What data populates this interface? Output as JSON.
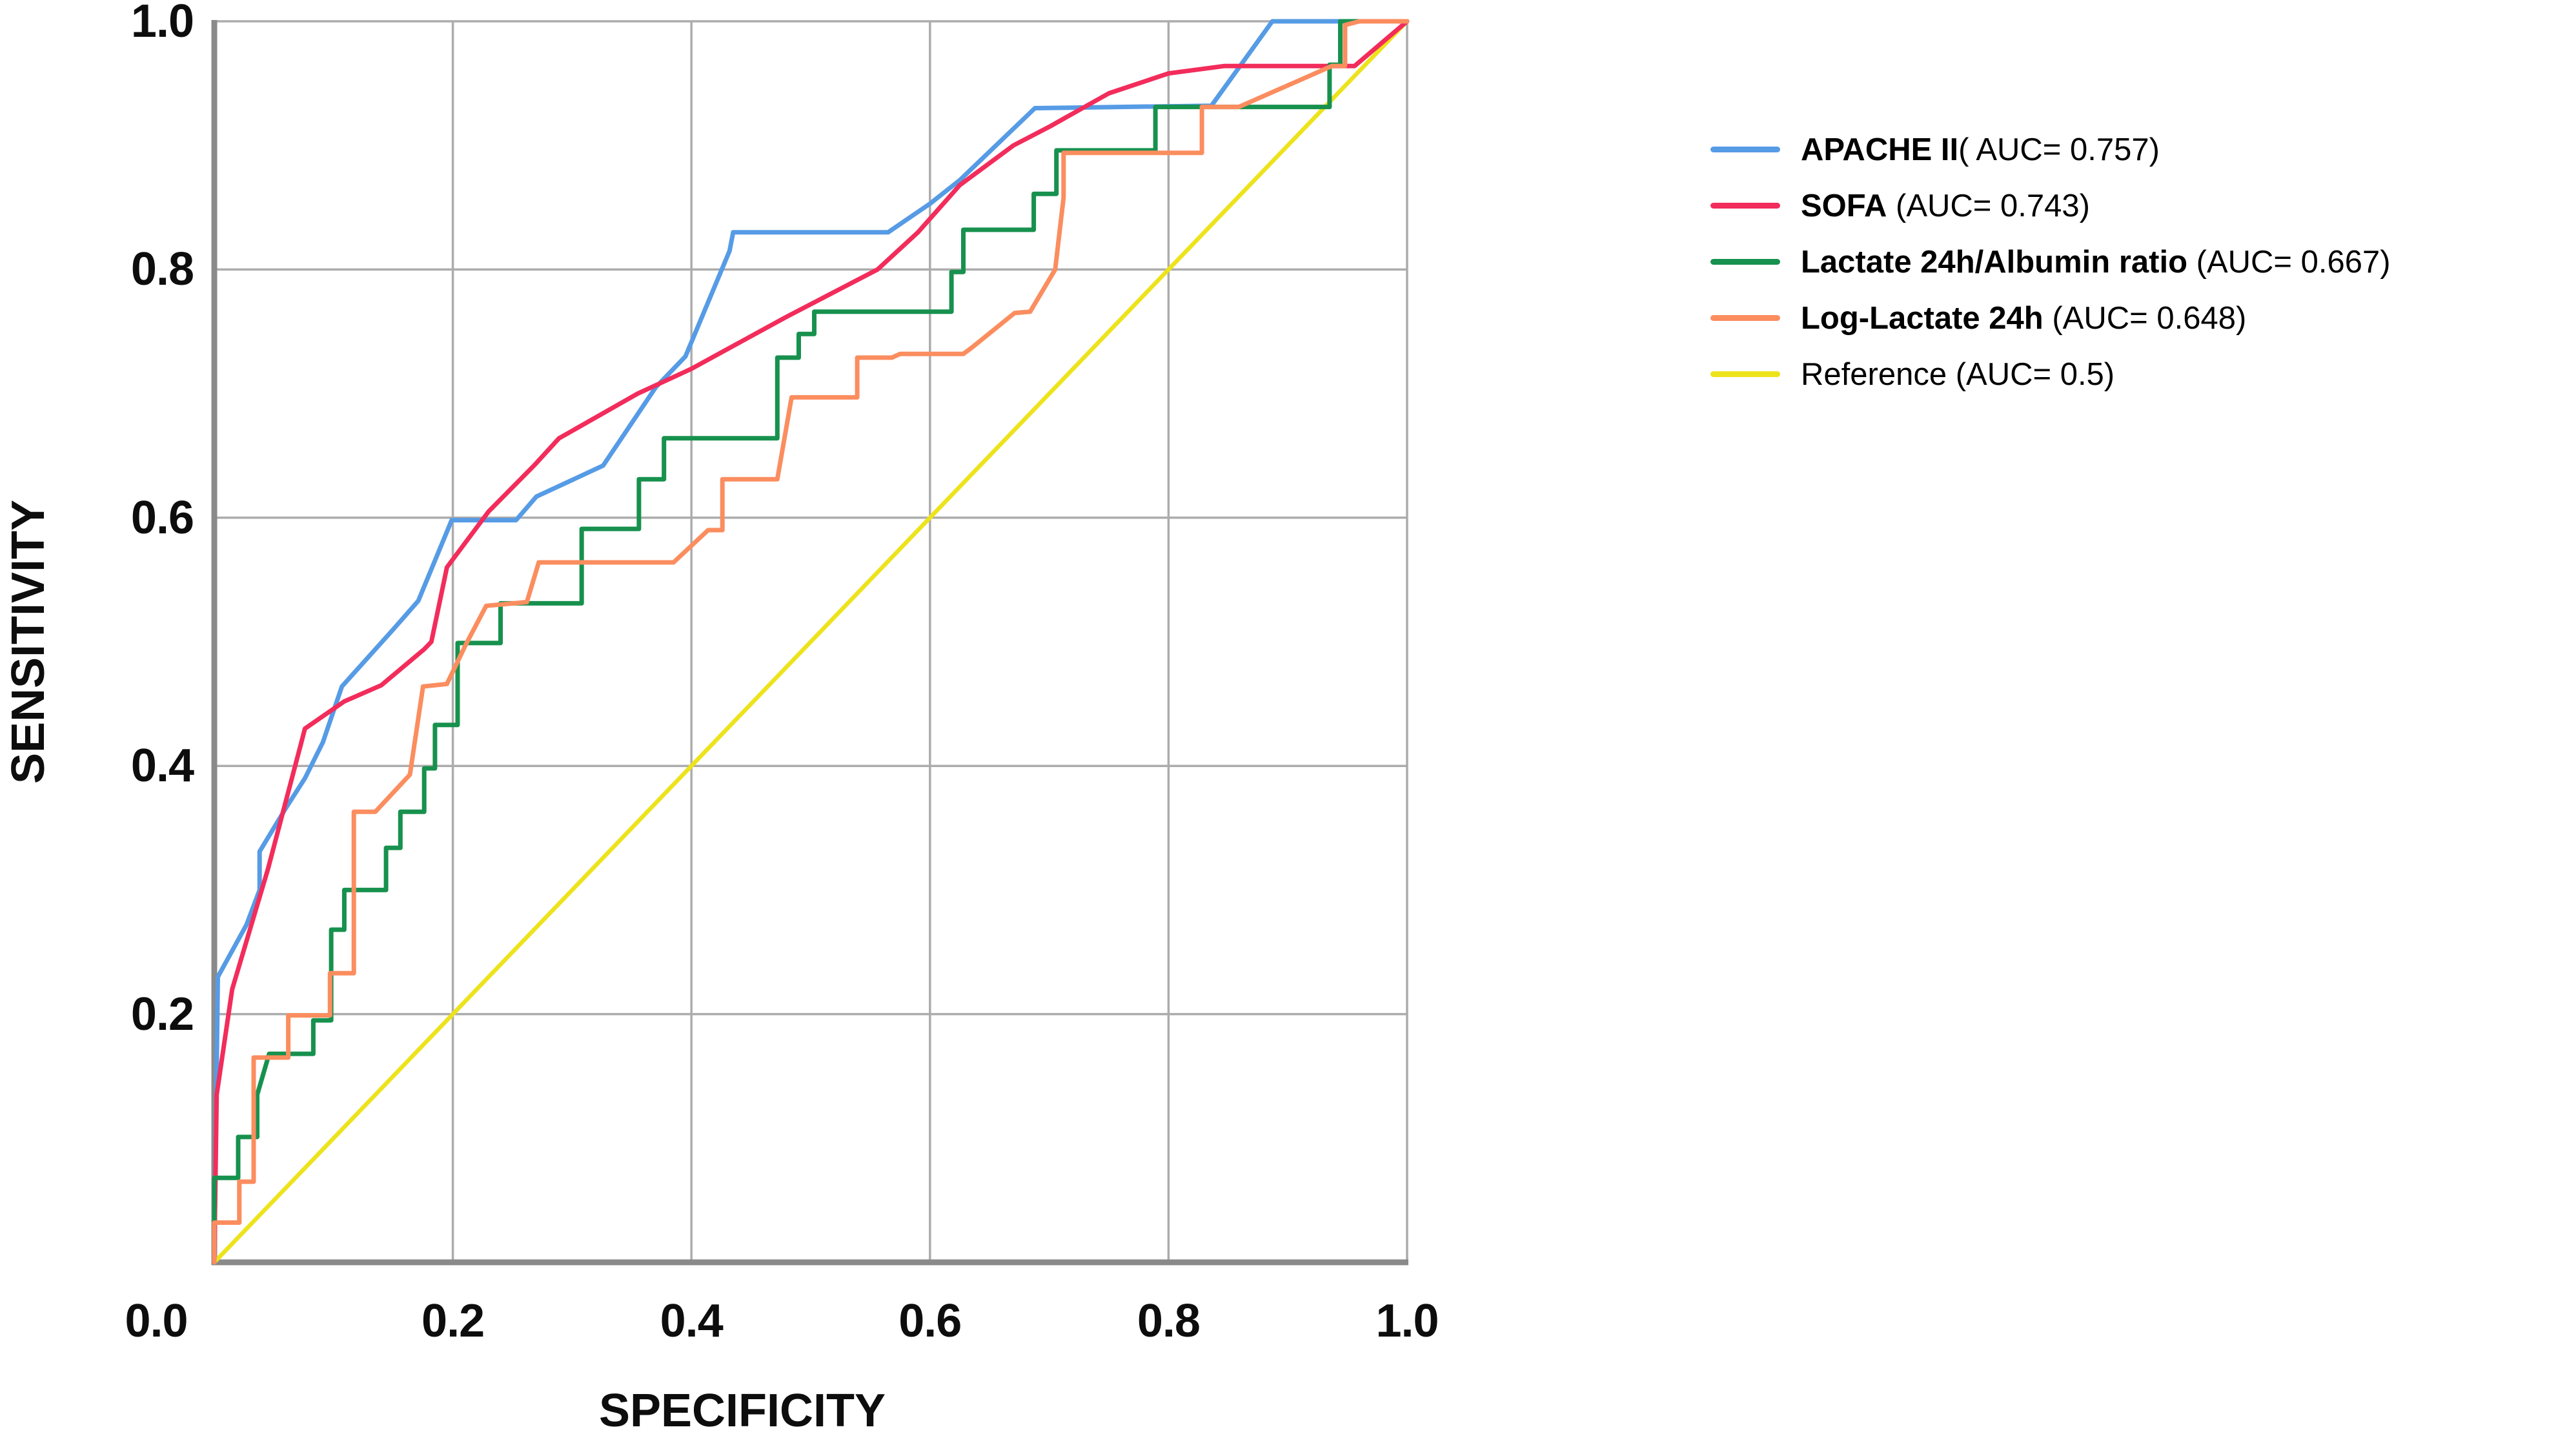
{
  "chart_data": {
    "type": "line",
    "subtype": "roc-curves",
    "title": "",
    "xlabel": "SPECIFICITY",
    "ylabel": "SENSITIVITY",
    "xlim": [
      0,
      1
    ],
    "ylim": [
      0,
      1
    ],
    "grid": true,
    "legend_position": "right-outside",
    "corner_tick": "0.0",
    "x_ticks": {
      "labels": [
        "0.2",
        "0.4",
        "0.6",
        "0.8",
        "1.0"
      ],
      "values": [
        0.2,
        0.4,
        0.6,
        0.8,
        1.0
      ]
    },
    "y_ticks": {
      "labels": [
        "1.0",
        "0.8",
        "0.6",
        "0.4",
        "0.2"
      ],
      "values": [
        1.0,
        0.8,
        0.6,
        0.4,
        0.2
      ]
    },
    "series": [
      {
        "name": "APACHE II",
        "auc": "0.757",
        "legend_bold": "APACHE II",
        "legend_rest": "( AUC= 0.757)",
        "color": "#569BE5",
        "points": [
          [
            0,
            0
          ],
          [
            0.003,
            0.23
          ],
          [
            0.027,
            0.272
          ],
          [
            0.038,
            0.3
          ],
          [
            0.038,
            0.331
          ],
          [
            0.06,
            0.366
          ],
          [
            0.076,
            0.39
          ],
          [
            0.091,
            0.419
          ],
          [
            0.107,
            0.464
          ],
          [
            0.15,
            0.51
          ],
          [
            0.171,
            0.533
          ],
          [
            0.199,
            0.598
          ],
          [
            0.253,
            0.598
          ],
          [
            0.27,
            0.617
          ],
          [
            0.326,
            0.642
          ],
          [
            0.37,
            0.705
          ],
          [
            0.395,
            0.73
          ],
          [
            0.432,
            0.815
          ],
          [
            0.435,
            0.83
          ],
          [
            0.565,
            0.83
          ],
          [
            0.6,
            0.853
          ],
          [
            0.625,
            0.872
          ],
          [
            0.688,
            0.93
          ],
          [
            0.836,
            0.932
          ],
          [
            0.887,
            1.0
          ],
          [
            1,
            1
          ]
        ]
      },
      {
        "name": "SOFA",
        "auc": "0.743",
        "legend_bold": "SOFA",
        "legend_rest": " (AUC= 0.743)",
        "color": "#F22C5B",
        "points": [
          [
            0,
            0
          ],
          [
            0.002,
            0.135
          ],
          [
            0.015,
            0.22
          ],
          [
            0.045,
            0.317
          ],
          [
            0.073,
            0.419
          ],
          [
            0.076,
            0.43
          ],
          [
            0.109,
            0.452
          ],
          [
            0.14,
            0.465
          ],
          [
            0.176,
            0.494
          ],
          [
            0.182,
            0.5
          ],
          [
            0.195,
            0.56
          ],
          [
            0.23,
            0.605
          ],
          [
            0.268,
            0.642
          ],
          [
            0.289,
            0.664
          ],
          [
            0.355,
            0.7
          ],
          [
            0.4,
            0.72
          ],
          [
            0.48,
            0.762
          ],
          [
            0.556,
            0.8
          ],
          [
            0.59,
            0.83
          ],
          [
            0.625,
            0.868
          ],
          [
            0.67,
            0.9
          ],
          [
            0.7,
            0.915
          ],
          [
            0.75,
            0.942
          ],
          [
            0.8,
            0.958
          ],
          [
            0.847,
            0.964
          ],
          [
            0.956,
            0.964
          ],
          [
            1,
            1
          ]
        ]
      },
      {
        "name": "Lactate 24h/Albumin ratio",
        "auc": "0.667",
        "legend_bold": "Lactate 24h/Albumin ratio",
        "legend_rest": " (AUC= 0.667)",
        "color": "#17914E",
        "points": [
          [
            0,
            0
          ],
          [
            0,
            0.068
          ],
          [
            0.02,
            0.068
          ],
          [
            0.02,
            0.101
          ],
          [
            0.036,
            0.101
          ],
          [
            0.036,
            0.135
          ],
          [
            0.046,
            0.168
          ],
          [
            0.083,
            0.168
          ],
          [
            0.083,
            0.195
          ],
          [
            0.098,
            0.195
          ],
          [
            0.098,
            0.268
          ],
          [
            0.109,
            0.268
          ],
          [
            0.109,
            0.3
          ],
          [
            0.144,
            0.3
          ],
          [
            0.144,
            0.334
          ],
          [
            0.156,
            0.334
          ],
          [
            0.156,
            0.363
          ],
          [
            0.176,
            0.363
          ],
          [
            0.176,
            0.398
          ],
          [
            0.185,
            0.398
          ],
          [
            0.185,
            0.433
          ],
          [
            0.204,
            0.433
          ],
          [
            0.204,
            0.499
          ],
          [
            0.24,
            0.499
          ],
          [
            0.24,
            0.531
          ],
          [
            0.308,
            0.531
          ],
          [
            0.308,
            0.591
          ],
          [
            0.356,
            0.591
          ],
          [
            0.356,
            0.631
          ],
          [
            0.377,
            0.631
          ],
          [
            0.377,
            0.664
          ],
          [
            0.472,
            0.664
          ],
          [
            0.472,
            0.729
          ],
          [
            0.49,
            0.729
          ],
          [
            0.49,
            0.748
          ],
          [
            0.503,
            0.748
          ],
          [
            0.503,
            0.766
          ],
          [
            0.618,
            0.766
          ],
          [
            0.618,
            0.798
          ],
          [
            0.628,
            0.798
          ],
          [
            0.628,
            0.832
          ],
          [
            0.687,
            0.832
          ],
          [
            0.687,
            0.861
          ],
          [
            0.706,
            0.861
          ],
          [
            0.706,
            0.896
          ],
          [
            0.789,
            0.896
          ],
          [
            0.789,
            0.931
          ],
          [
            0.935,
            0.931
          ],
          [
            0.935,
            0.965
          ],
          [
            0.944,
            0.965
          ],
          [
            0.944,
            1.0
          ],
          [
            1,
            1
          ]
        ]
      },
      {
        "name": "Log-Lactate 24h",
        "auc": "0.648",
        "legend_bold": "Log-Lactate 24h",
        "legend_rest": " (AUC= 0.648)",
        "color": "#FB8D5F",
        "points": [
          [
            0,
            0
          ],
          [
            0,
            0.032
          ],
          [
            0.021,
            0.032
          ],
          [
            0.021,
            0.065
          ],
          [
            0.033,
            0.065
          ],
          [
            0.033,
            0.165
          ],
          [
            0.062,
            0.165
          ],
          [
            0.062,
            0.199
          ],
          [
            0.097,
            0.199
          ],
          [
            0.097,
            0.233
          ],
          [
            0.117,
            0.233
          ],
          [
            0.117,
            0.363
          ],
          [
            0.135,
            0.363
          ],
          [
            0.164,
            0.393
          ],
          [
            0.175,
            0.464
          ],
          [
            0.195,
            0.466
          ],
          [
            0.211,
            0.498
          ],
          [
            0.228,
            0.529
          ],
          [
            0.262,
            0.532
          ],
          [
            0.272,
            0.564
          ],
          [
            0.385,
            0.564
          ],
          [
            0.414,
            0.59
          ],
          [
            0.426,
            0.59
          ],
          [
            0.426,
            0.631
          ],
          [
            0.472,
            0.631
          ],
          [
            0.484,
            0.697
          ],
          [
            0.539,
            0.697
          ],
          [
            0.539,
            0.729
          ],
          [
            0.568,
            0.729
          ],
          [
            0.575,
            0.732
          ],
          [
            0.628,
            0.732
          ],
          [
            0.635,
            0.737
          ],
          [
            0.671,
            0.765
          ],
          [
            0.684,
            0.766
          ],
          [
            0.705,
            0.8
          ],
          [
            0.712,
            0.858
          ],
          [
            0.712,
            0.894
          ],
          [
            0.828,
            0.894
          ],
          [
            0.828,
            0.931
          ],
          [
            0.859,
            0.931
          ],
          [
            0.937,
            0.964
          ],
          [
            0.948,
            0.964
          ],
          [
            0.948,
            0.997
          ],
          [
            0.96,
            1.0
          ],
          [
            1,
            1
          ]
        ]
      },
      {
        "name": "Reference",
        "auc": "0.5",
        "legend_bold": "",
        "legend_rest": "Reference (AUC= 0.5)",
        "color": "#EDE31C",
        "points": [
          [
            0,
            0
          ],
          [
            1,
            1
          ]
        ]
      }
    ]
  },
  "colors": {
    "background": "#FFFFFF",
    "gridline": "#ACACAC",
    "axis_spine": "#8A8A8A",
    "text": "#0D0D0D"
  }
}
